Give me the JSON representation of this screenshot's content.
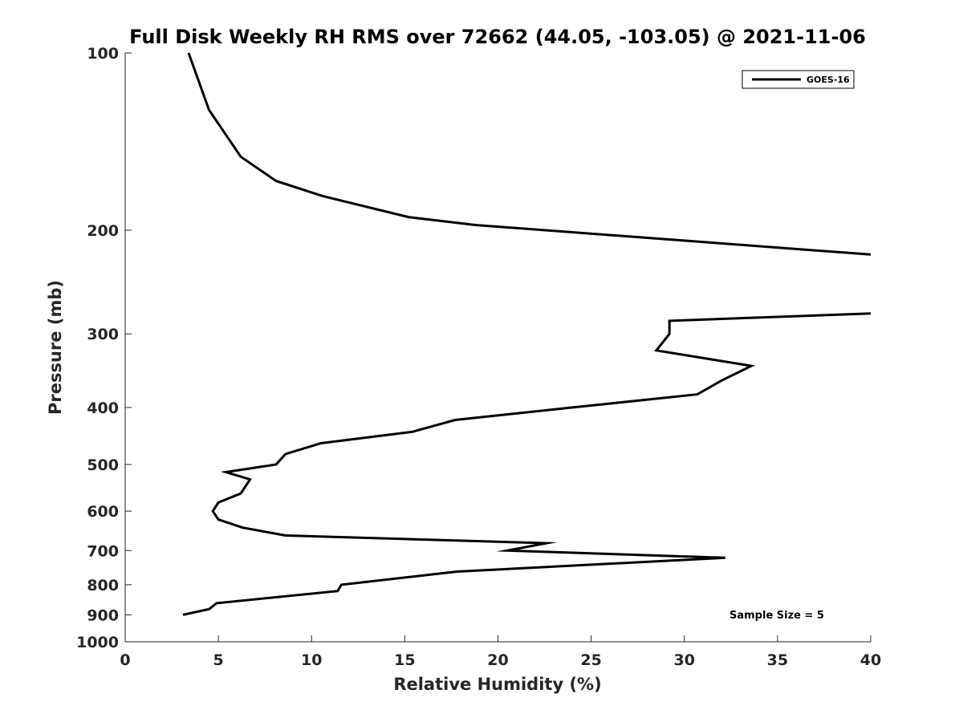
{
  "chart_data": {
    "type": "line",
    "title": "Full Disk Weekly RH RMS over 72662 (44.05, -103.05) @ 2021-11-06",
    "xlabel": "Relative Humidity (%)",
    "ylabel": "Pressure (mb)",
    "xlim": [
      0,
      40
    ],
    "ylim": [
      100,
      1000
    ],
    "y_scale": "log",
    "y_reversed": true,
    "x_ticks": [
      0,
      5,
      10,
      15,
      20,
      25,
      30,
      35,
      40
    ],
    "y_ticks": [
      100,
      200,
      300,
      400,
      500,
      600,
      700,
      800,
      900,
      1000
    ],
    "grid": false,
    "legend_position": "top-right",
    "line_color": "#000000",
    "series": [
      {
        "name": "GOES-16",
        "segments": [
          {
            "x": [
              3.4,
              4.5,
              6.2,
              8.1,
              10.6,
              15.2,
              18.8,
              31.5,
              40.0
            ],
            "y": [
              100,
              125,
              150,
              165,
              175,
              190,
              196,
              210,
              220
            ]
          },
          {
            "x": [
              40.0,
              29.2,
              29.2,
              28.5,
              33.6,
              32.0,
              30.7,
              24.0,
              17.7,
              15.4,
              10.5,
              8.6,
              8.1,
              5.4,
              6.7,
              6.2,
              5.0,
              4.7,
              5.0,
              6.3,
              8.6,
              22.6,
              20.5,
              32.2,
              17.8,
              11.6,
              11.4,
              4.9,
              4.5,
              3.1
            ],
            "y": [
              277,
              285,
              300,
              320,
              340,
              360,
              380,
              400,
              420,
              440,
              460,
              480,
              500,
              515,
              530,
              560,
              580,
              600,
              620,
              640,
              660,
              680,
              700,
              720,
              760,
              800,
              820,
              860,
              880,
              900
            ]
          }
        ]
      }
    ],
    "annotation": "Sample Size = 5"
  }
}
